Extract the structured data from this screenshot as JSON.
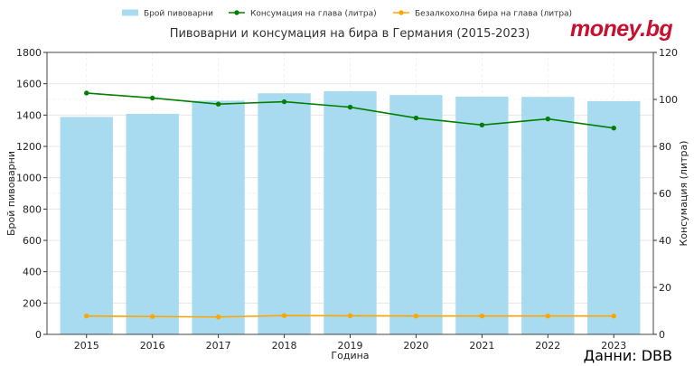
{
  "brand": {
    "logo_text": "money.bg",
    "logo_color": "#c8102e"
  },
  "source_text": "Данни: DBB",
  "chart_data": {
    "type": "bar+line",
    "title": "Пивоварни и консумация на бира в Германия (2015-2023)",
    "xlabel": "Година",
    "ylabel_left": "Брой пивоварни",
    "ylabel_right": "Консумация (литра)",
    "categories": [
      "2015",
      "2016",
      "2017",
      "2018",
      "2019",
      "2020",
      "2021",
      "2022",
      "2023"
    ],
    "y_left_lim": [
      0,
      1800
    ],
    "y_left_ticks": [
      0,
      200,
      400,
      600,
      800,
      1000,
      1200,
      1400,
      1600,
      1800
    ],
    "y_right_lim": [
      0,
      120
    ],
    "y_right_ticks": [
      0,
      20,
      40,
      60,
      80,
      100,
      120
    ],
    "grid": true,
    "legend_position": "top-center",
    "series": [
      {
        "name": "Брой пивоварни",
        "kind": "bar",
        "axis": "left",
        "color": "#a8dbef",
        "values": [
          1388,
          1408,
          1492,
          1539,
          1552,
          1528,
          1518,
          1516,
          1489
        ]
      },
      {
        "name": "Консумация на глава (литра)",
        "kind": "line",
        "axis": "right",
        "color": "#008000",
        "values": [
          102.7,
          100.6,
          98.0,
          99.0,
          96.7,
          92.1,
          89.1,
          91.7,
          87.8
        ]
      },
      {
        "name": "Безалкохолна бира на глава (литра)",
        "kind": "line",
        "axis": "right",
        "color": "#ffa500",
        "values": [
          7.8,
          7.6,
          7.4,
          8.0,
          7.9,
          7.8,
          7.8,
          7.8,
          7.8
        ]
      }
    ]
  }
}
